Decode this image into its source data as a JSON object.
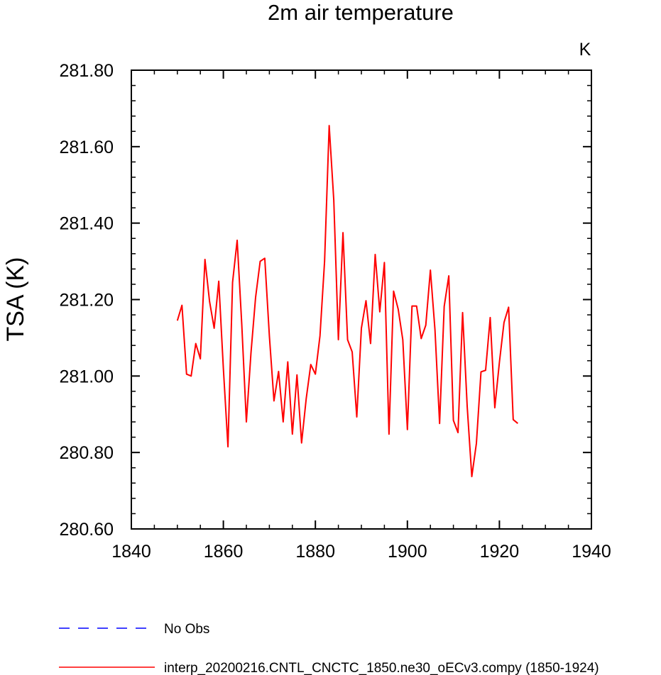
{
  "chart_data": {
    "type": "line",
    "title": "2m air temperature",
    "units_label": "K",
    "xlabel": "",
    "ylabel": "TSA  (K)",
    "xlim": [
      1840,
      1940
    ],
    "ylim": [
      280.6,
      281.8
    ],
    "xticks": [
      "1840",
      "1860",
      "1880",
      "1900",
      "1920",
      "1940"
    ],
    "yticks": [
      "280.60",
      "280.80",
      "281.00",
      "281.20",
      "281.40",
      "281.60",
      "281.80"
    ],
    "x": [
      1850,
      1851,
      1852,
      1853,
      1854,
      1855,
      1856,
      1857,
      1858,
      1859,
      1860,
      1861,
      1862,
      1863,
      1864,
      1865,
      1866,
      1867,
      1868,
      1869,
      1870,
      1871,
      1872,
      1873,
      1874,
      1875,
      1876,
      1877,
      1878,
      1879,
      1880,
      1881,
      1882,
      1883,
      1884,
      1885,
      1886,
      1887,
      1888,
      1889,
      1890,
      1891,
      1892,
      1893,
      1894,
      1895,
      1896,
      1897,
      1898,
      1899,
      1900,
      1901,
      1902,
      1903,
      1904,
      1905,
      1906,
      1907,
      1908,
      1909,
      1910,
      1911,
      1912,
      1913,
      1914,
      1915,
      1916,
      1917,
      1918,
      1919,
      1920,
      1921,
      1922,
      1923,
      1924
    ],
    "series": [
      {
        "name": "interp_20200216.CNTL_CNCTC_1850.ne30_oECv3.compy (1850-1924)",
        "color": "#ff0000",
        "style": "solid",
        "values": [
          281.145,
          281.185,
          281.005,
          281.0,
          281.085,
          281.045,
          281.305,
          281.195,
          281.125,
          281.248,
          281.02,
          280.815,
          281.245,
          281.355,
          281.135,
          280.88,
          281.06,
          281.205,
          281.3,
          281.308,
          281.105,
          280.935,
          281.012,
          280.88,
          281.037,
          280.848,
          281.003,
          280.825,
          280.94,
          281.03,
          281.005,
          281.105,
          281.3,
          281.655,
          281.46,
          281.095,
          281.375,
          281.095,
          281.063,
          280.893,
          281.125,
          281.197,
          281.085,
          281.318,
          281.168,
          281.297,
          280.848,
          281.222,
          281.175,
          281.095,
          280.86,
          281.183,
          281.183,
          281.098,
          281.133,
          281.277,
          281.12,
          280.876,
          281.182,
          281.262,
          280.884,
          280.852,
          281.166,
          280.92,
          280.737,
          280.824,
          281.011,
          281.015,
          281.153,
          280.917,
          281.036,
          281.14,
          281.18,
          280.886,
          280.876
        ]
      }
    ],
    "legend": [
      {
        "label": "No Obs",
        "color": "#0000ff",
        "style": "dashed"
      },
      {
        "label": "interp_20200216.CNTL_CNCTC_1850.ne30_oECv3.compy (1850-1924)",
        "color": "#ff0000",
        "style": "solid"
      }
    ],
    "legend_position": "bottom",
    "grid": false
  }
}
